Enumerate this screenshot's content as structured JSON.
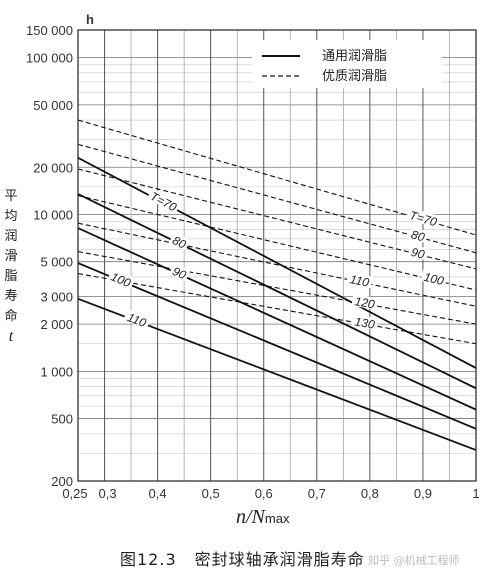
{
  "chart_data": {
    "type": "line",
    "y_scale": "log",
    "y_unit": "h",
    "ylim": [
      200,
      150000
    ],
    "xlim": [
      0.25,
      1.0
    ],
    "x_ticks": [
      "0,25",
      "0,3",
      "0,4",
      "0,5",
      "0,6",
      "0,7",
      "0,8",
      "0,9",
      "1"
    ],
    "x_tick_values": [
      0.25,
      0.3,
      0.4,
      0.5,
      0.6,
      0.7,
      0.8,
      0.9,
      1.0
    ],
    "y_ticks": [
      "150 000",
      "100 000",
      "50 000",
      "20 000",
      "10 000",
      "5 000",
      "3 000",
      "2 000",
      "1 000",
      "500",
      "200"
    ],
    "y_tick_values": [
      150000,
      100000,
      50000,
      20000,
      10000,
      5000,
      3000,
      2000,
      1000,
      500,
      200
    ],
    "grid": true,
    "legend": {
      "placement": "top-right",
      "entries": [
        {
          "label": "通用润滑脂",
          "style": "solid"
        },
        {
          "label": "优质润滑脂",
          "style": "dashed"
        }
      ]
    },
    "series": [
      {
        "group": "通用润滑脂",
        "style": "solid",
        "temp_label": "T=70",
        "points": [
          [
            0.25,
            23000
          ],
          [
            1.0,
            1050
          ]
        ]
      },
      {
        "group": "通用润滑脂",
        "style": "solid",
        "temp_label": "80",
        "points": [
          [
            0.25,
            13500
          ],
          [
            1.0,
            780
          ]
        ]
      },
      {
        "group": "通用润滑脂",
        "style": "solid",
        "temp_label": "90",
        "points": [
          [
            0.25,
            8200
          ],
          [
            1.0,
            570
          ]
        ]
      },
      {
        "group": "通用润滑脂",
        "style": "solid",
        "temp_label": "100",
        "points": [
          [
            0.25,
            4900
          ],
          [
            1.0,
            430
          ]
        ]
      },
      {
        "group": "通用润滑脂",
        "style": "solid",
        "temp_label": "110",
        "points": [
          [
            0.25,
            2900
          ],
          [
            1.0,
            315
          ]
        ]
      },
      {
        "group": "优质润滑脂",
        "style": "dashed",
        "temp_label": "T=70",
        "points": [
          [
            0.25,
            40000
          ],
          [
            1.0,
            7400
          ]
        ]
      },
      {
        "group": "优质润滑脂",
        "style": "dashed",
        "temp_label": "80",
        "points": [
          [
            0.25,
            28000
          ],
          [
            1.0,
            5700
          ]
        ]
      },
      {
        "group": "优质润滑脂",
        "style": "dashed",
        "temp_label": "90",
        "points": [
          [
            0.25,
            19500
          ],
          [
            1.0,
            4500
          ]
        ]
      },
      {
        "group": "优质润滑脂",
        "style": "dashed",
        "temp_label": "100",
        "points": [
          [
            0.25,
            13200
          ],
          [
            1.0,
            3300
          ]
        ]
      },
      {
        "group": "优质润滑脂",
        "style": "dashed",
        "temp_label": "110",
        "points": [
          [
            0.25,
            8800
          ],
          [
            1.0,
            2600
          ]
        ]
      },
      {
        "group": "优质润滑脂",
        "style": "dashed",
        "temp_label": "120",
        "points": [
          [
            0.25,
            5800
          ],
          [
            1.0,
            2000
          ]
        ]
      },
      {
        "group": "优质润滑脂",
        "style": "dashed",
        "temp_label": "130",
        "points": [
          [
            0.25,
            4200
          ],
          [
            1.0,
            1500
          ]
        ]
      }
    ],
    "ylabel_chars": [
      "平",
      "均",
      "润",
      "滑",
      "脂",
      "寿",
      "命"
    ],
    "ylabel_symbol": "t",
    "xlabel_main": "n/N",
    "xlabel_sub": "max",
    "caption_number": "图12.3",
    "caption_text": "密封球轴承润滑脂寿命"
  },
  "watermark": "知乎 @机械工程师"
}
